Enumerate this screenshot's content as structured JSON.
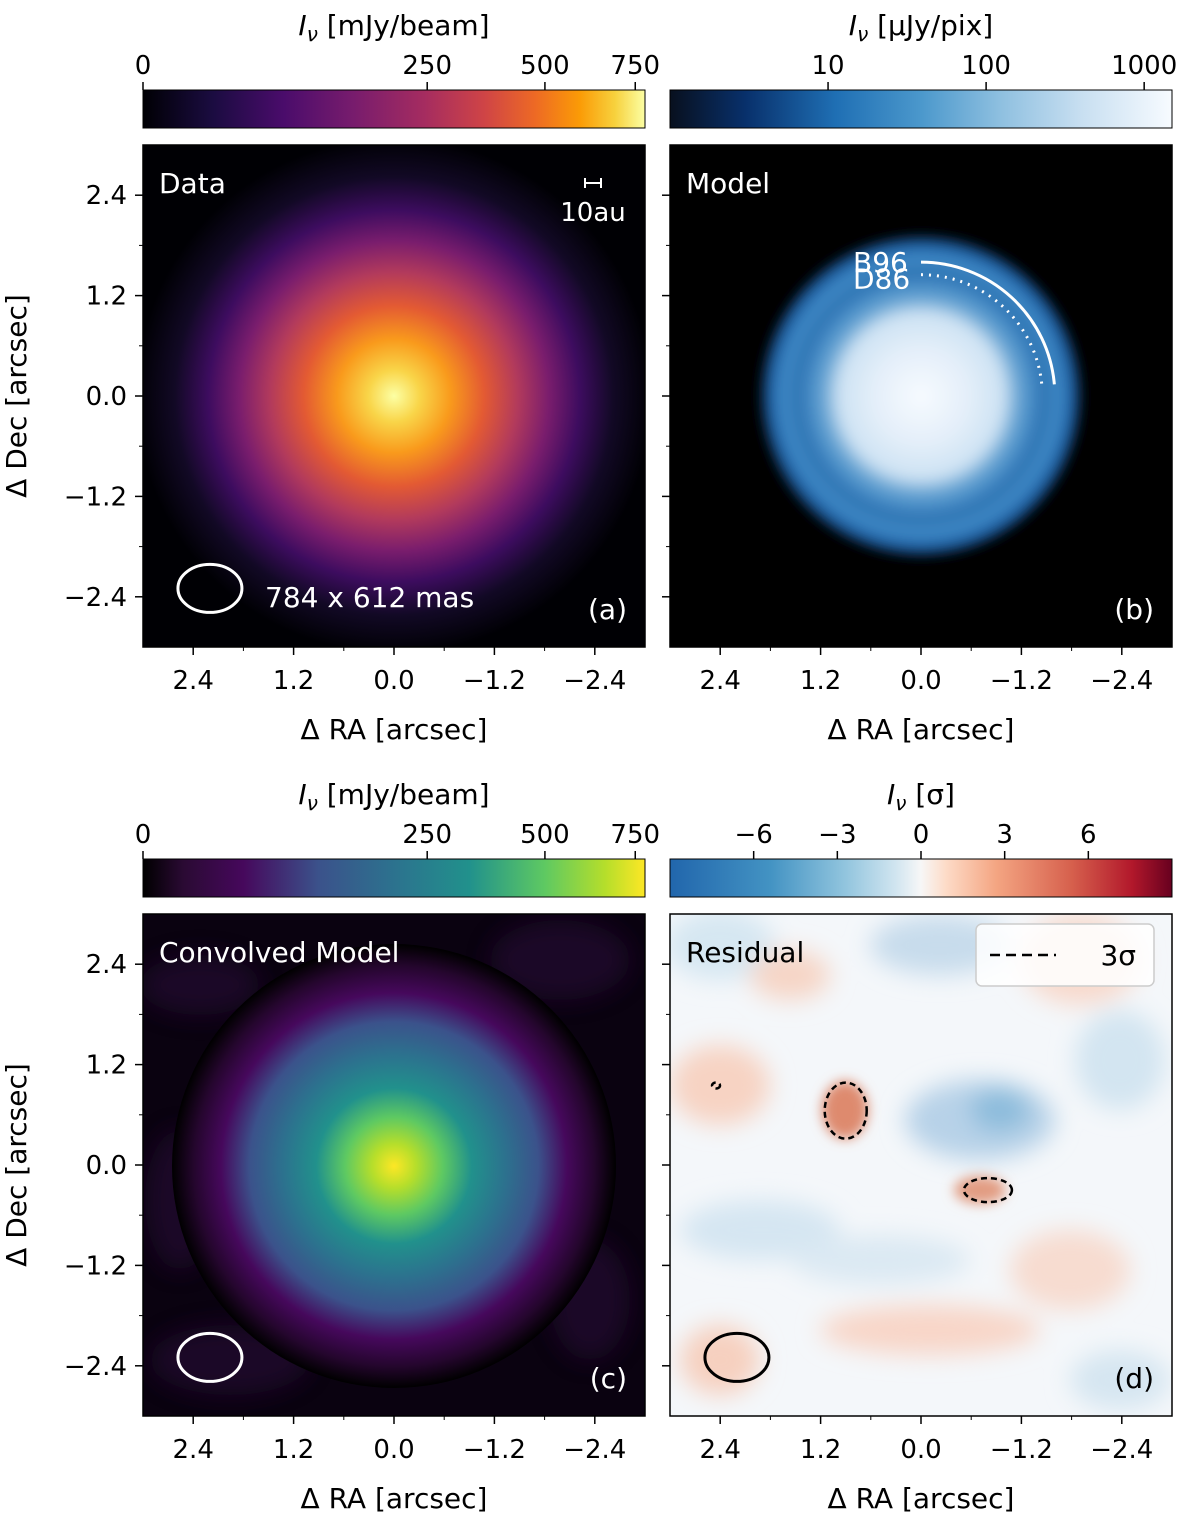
{
  "chart_data": [
    {
      "type": "heatmap",
      "panel_id": "(a)",
      "panel_label": "Data",
      "colorbar": {
        "label": "I_ν [mJy/beam]",
        "label_base": "I",
        "label_sub": "ν",
        "label_unit": "[mJy/beam]",
        "ticks": [
          "0",
          "250",
          "500",
          "750"
        ],
        "tick_values": [
          0,
          250,
          500,
          750
        ],
        "range": [
          0,
          780
        ],
        "scale": "power",
        "colormap": "inferno"
      },
      "xlabel": "Δ RA [arcsec]",
      "ylabel": "Δ Dec [arcsec]",
      "xticks": [
        "2.4",
        "1.2",
        "0.0",
        "−1.2",
        "−2.4"
      ],
      "yticks": [
        "2.4",
        "1.2",
        "0.0",
        "−1.2",
        "−2.4"
      ],
      "xlim": [
        3.0,
        -3.0
      ],
      "ylim": [
        -3.0,
        3.0
      ],
      "beam_text": "784 x 612 mas",
      "scalebar_text": "10au",
      "show_xlabel": true,
      "show_ylabel": true,
      "show_yticklabels": true
    },
    {
      "type": "heatmap",
      "panel_id": "(b)",
      "panel_label": "Model",
      "colorbar": {
        "label": "I_ν [μJy/pix]",
        "label_base": "I",
        "label_sub": "ν",
        "label_unit": "[μJy/pix]",
        "ticks": [
          "10",
          "100",
          "1000"
        ],
        "tick_values": [
          10,
          100,
          1000
        ],
        "range": [
          1,
          1500
        ],
        "scale": "log",
        "colormap": "Blues_r"
      },
      "xlabel": "Δ RA [arcsec]",
      "xticks": [
        "2.4",
        "1.2",
        "0.0",
        "−1.2",
        "−2.4"
      ],
      "xlim": [
        3.0,
        -3.0
      ],
      "ylim": [
        -3.0,
        3.0
      ],
      "annotations": [
        {
          "text": "B96",
          "radius_arcsec": 1.6,
          "style": "solid"
        },
        {
          "text": "D86",
          "radius_arcsec": 1.45,
          "style": "dotted"
        }
      ],
      "show_xlabel": true,
      "show_ylabel": false,
      "show_yticklabels": false
    },
    {
      "type": "heatmap",
      "panel_id": "(c)",
      "panel_label": "Convolved Model",
      "colorbar": {
        "label": "I_ν [mJy/beam]",
        "label_base": "I",
        "label_sub": "ν",
        "label_unit": "[mJy/beam]",
        "ticks": [
          "0",
          "250",
          "500",
          "750"
        ],
        "tick_values": [
          0,
          250,
          500,
          750
        ],
        "range": [
          0,
          780
        ],
        "scale": "power",
        "colormap": "viridis"
      },
      "xlabel": "Δ RA [arcsec]",
      "ylabel": "Δ Dec [arcsec]",
      "xticks": [
        "2.4",
        "1.2",
        "0.0",
        "−1.2",
        "−2.4"
      ],
      "yticks": [
        "2.4",
        "1.2",
        "0.0",
        "−1.2",
        "−2.4"
      ],
      "xlim": [
        3.0,
        -3.0
      ],
      "ylim": [
        -3.0,
        3.0
      ],
      "show_xlabel": true,
      "show_ylabel": true,
      "show_yticklabels": true
    },
    {
      "type": "heatmap",
      "panel_id": "(d)",
      "panel_label": "Residual",
      "colorbar": {
        "label": "I_ν [σ]",
        "label_base": "I",
        "label_sub": "ν",
        "label_unit": "[σ]",
        "ticks": [
          "−6",
          "−3",
          "0",
          "3",
          "6"
        ],
        "tick_values": [
          -6,
          -3,
          0,
          3,
          6
        ],
        "range": [
          -9,
          9
        ],
        "scale": "linear",
        "colormap": "RdBu_r"
      },
      "xlabel": "Δ RA [arcsec]",
      "xticks": [
        "2.4",
        "1.2",
        "0.0",
        "−1.2",
        "−2.4"
      ],
      "xlim": [
        3.0,
        -3.0
      ],
      "ylim": [
        -3.0,
        3.0
      ],
      "legend": {
        "entry": "3σ",
        "style": "dashed",
        "location": "upper right"
      },
      "contours_3sigma": [
        {
          "ra": 0.9,
          "dec": 0.65
        },
        {
          "ra": -0.8,
          "dec": -0.3
        },
        {
          "ra": 2.45,
          "dec": 0.95
        }
      ],
      "show_xlabel": true,
      "show_ylabel": false,
      "show_yticklabels": false
    }
  ]
}
